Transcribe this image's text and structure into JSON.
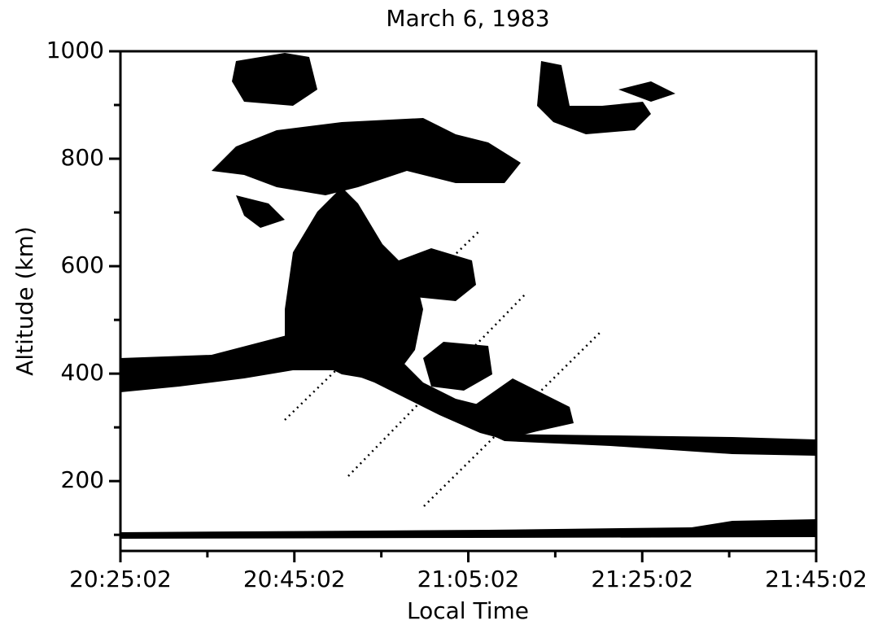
{
  "chart_data": {
    "type": "image",
    "title": "March 6, 1983",
    "x_label": "Local Time",
    "y_label": "Altitude (km)",
    "xlim": [
      73502,
      78302
    ],
    "xticks": [
      {
        "value": 73502,
        "label": "20:25:02"
      },
      {
        "value": 74702,
        "label": "20:45:02"
      },
      {
        "value": 75902,
        "label": "21:05:02"
      },
      {
        "value": 77102,
        "label": "21:25:02"
      },
      {
        "value": 78302,
        "label": "21:45:02"
      }
    ],
    "xminorticks": [
      74102,
      75302,
      76502,
      77702
    ],
    "ylim": [
      70,
      1000
    ],
    "yticks": [
      200,
      400,
      600,
      800,
      1000
    ],
    "yminorticks": [
      100,
      300,
      500,
      700,
      900
    ]
  }
}
